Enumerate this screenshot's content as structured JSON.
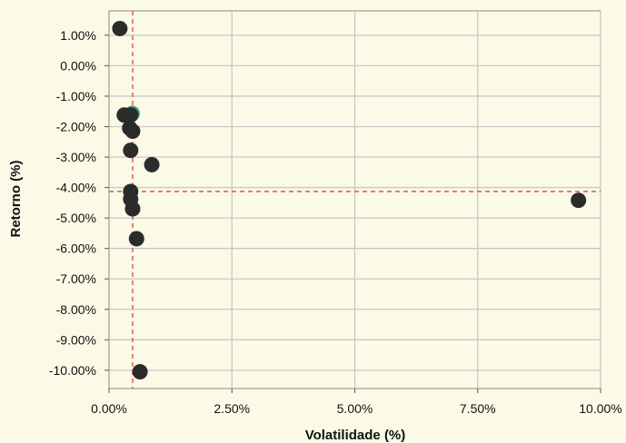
{
  "chart_data": {
    "type": "scatter",
    "xlabel": "Volatilidade (%)",
    "ylabel": "Retorno (%)",
    "xlim": [
      0,
      10
    ],
    "ylim": [
      -10.6,
      1.8
    ],
    "x_ticks": [
      0,
      2.5,
      5,
      7.5,
      10
    ],
    "x_tick_labels": [
      "0.00%",
      "2.50%",
      "5.00%",
      "7.50%",
      "10.00%"
    ],
    "y_ticks": [
      1,
      0,
      -1,
      -2,
      -3,
      -4,
      -5,
      -6,
      -7,
      -8,
      -9,
      -10
    ],
    "y_tick_labels": [
      "1.00%",
      "0.00%",
      "-1.00%",
      "-2.00%",
      "-3.00%",
      "-4.00%",
      "-5.00%",
      "-6.00%",
      "-7.00%",
      "-8.00%",
      "-9.00%",
      "-10.00%"
    ],
    "grid": true,
    "reference_lines": {
      "vertical_x": 0.48,
      "horizontal_y": -4.13,
      "color": "#e8423c"
    },
    "highlight_color": "#2a9a8a",
    "point_color": "#2b2b2b",
    "highlighted_point": {
      "x": 0.47,
      "y": -1.57
    },
    "points": [
      {
        "x": 0.22,
        "y": 1.22
      },
      {
        "x": 0.31,
        "y": -1.62
      },
      {
        "x": 0.44,
        "y": -1.62
      },
      {
        "x": 0.42,
        "y": -2.05
      },
      {
        "x": 0.48,
        "y": -2.15
      },
      {
        "x": 0.44,
        "y": -2.78
      },
      {
        "x": 0.87,
        "y": -3.25
      },
      {
        "x": 0.44,
        "y": -4.13
      },
      {
        "x": 0.44,
        "y": -4.38
      },
      {
        "x": 0.48,
        "y": -4.7
      },
      {
        "x": 0.56,
        "y": -5.68
      },
      {
        "x": 0.63,
        "y": -10.05
      },
      {
        "x": 9.55,
        "y": -4.42
      }
    ]
  }
}
